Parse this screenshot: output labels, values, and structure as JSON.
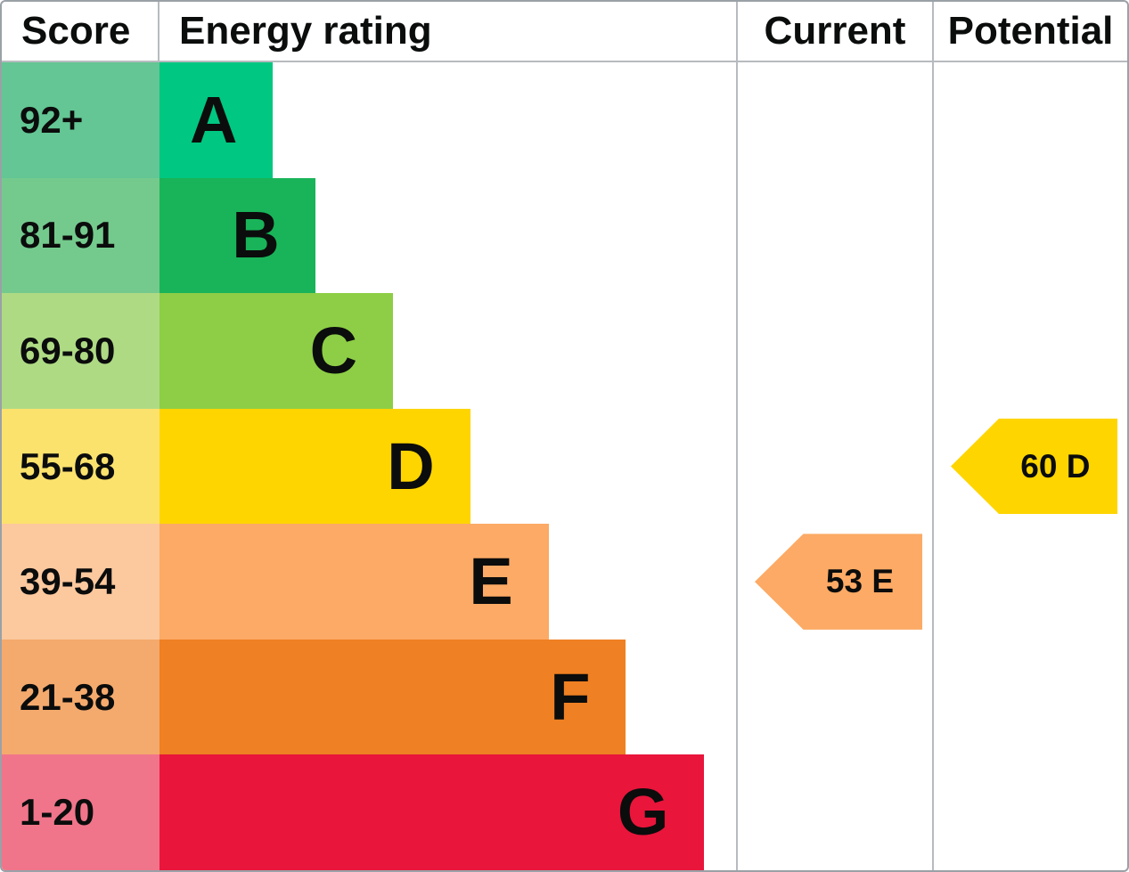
{
  "header": {
    "score": "Score",
    "energy_rating": "Energy rating",
    "current": "Current",
    "potential": "Potential"
  },
  "bands": [
    {
      "letter": "A",
      "score_range": "92+",
      "bar_color": "#00c781",
      "score_bg": "#63c694",
      "width_pct": 19.7
    },
    {
      "letter": "B",
      "score_range": "81-91",
      "bar_color": "#19b459",
      "score_bg": "#74ca8d",
      "width_pct": 27.0
    },
    {
      "letter": "C",
      "score_range": "69-80",
      "bar_color": "#8dce46",
      "score_bg": "#aeda84",
      "width_pct": 40.5
    },
    {
      "letter": "D",
      "score_range": "55-68",
      "bar_color": "#ffd500",
      "score_bg": "#fbe26d",
      "width_pct": 53.9
    },
    {
      "letter": "E",
      "score_range": "39-54",
      "bar_color": "#fcaa65",
      "score_bg": "#fcc89e",
      "width_pct": 67.5
    },
    {
      "letter": "F",
      "score_range": "21-38",
      "bar_color": "#ef8023",
      "score_bg": "#f4aa6d",
      "width_pct": 80.9
    },
    {
      "letter": "G",
      "score_range": "1-20",
      "bar_color": "#e9153b",
      "score_bg": "#f0758a",
      "width_pct": 94.5
    }
  ],
  "current": {
    "label": "53 E",
    "value": 53,
    "band": "E",
    "color": "#fcaa65",
    "band_index": 4
  },
  "potential": {
    "label": "60 D",
    "value": 60,
    "band": "D",
    "color": "#ffd500",
    "band_index": 3
  },
  "colors": {
    "outer_border": "#9aa1a7",
    "grid_line": "#b7bbbf",
    "text": "#0b0c0c"
  },
  "chart_data": {
    "type": "bar",
    "orientation": "horizontal",
    "title": "Energy rating",
    "categories": [
      "A",
      "B",
      "C",
      "D",
      "E",
      "F",
      "G"
    ],
    "score_ranges": [
      "92+",
      "81-91",
      "69-80",
      "55-68",
      "39-54",
      "21-38",
      "1-20"
    ],
    "values": [
      19.7,
      27.0,
      40.5,
      53.9,
      67.5,
      80.9,
      94.5
    ],
    "value_unit": "percent_of_rating_column_width",
    "colors": [
      "#00c781",
      "#19b459",
      "#8dce46",
      "#ffd500",
      "#fcaa65",
      "#ef8023",
      "#e9153b"
    ],
    "column_headers": [
      "Score",
      "Energy rating",
      "Current",
      "Potential"
    ],
    "annotations": [
      {
        "column": "Current",
        "label": "53 E",
        "value": 53,
        "band": "E",
        "color": "#fcaa65"
      },
      {
        "column": "Potential",
        "label": "60 D",
        "value": 60,
        "band": "D",
        "color": "#ffd500"
      }
    ],
    "legend_position": "none",
    "grid": false
  }
}
